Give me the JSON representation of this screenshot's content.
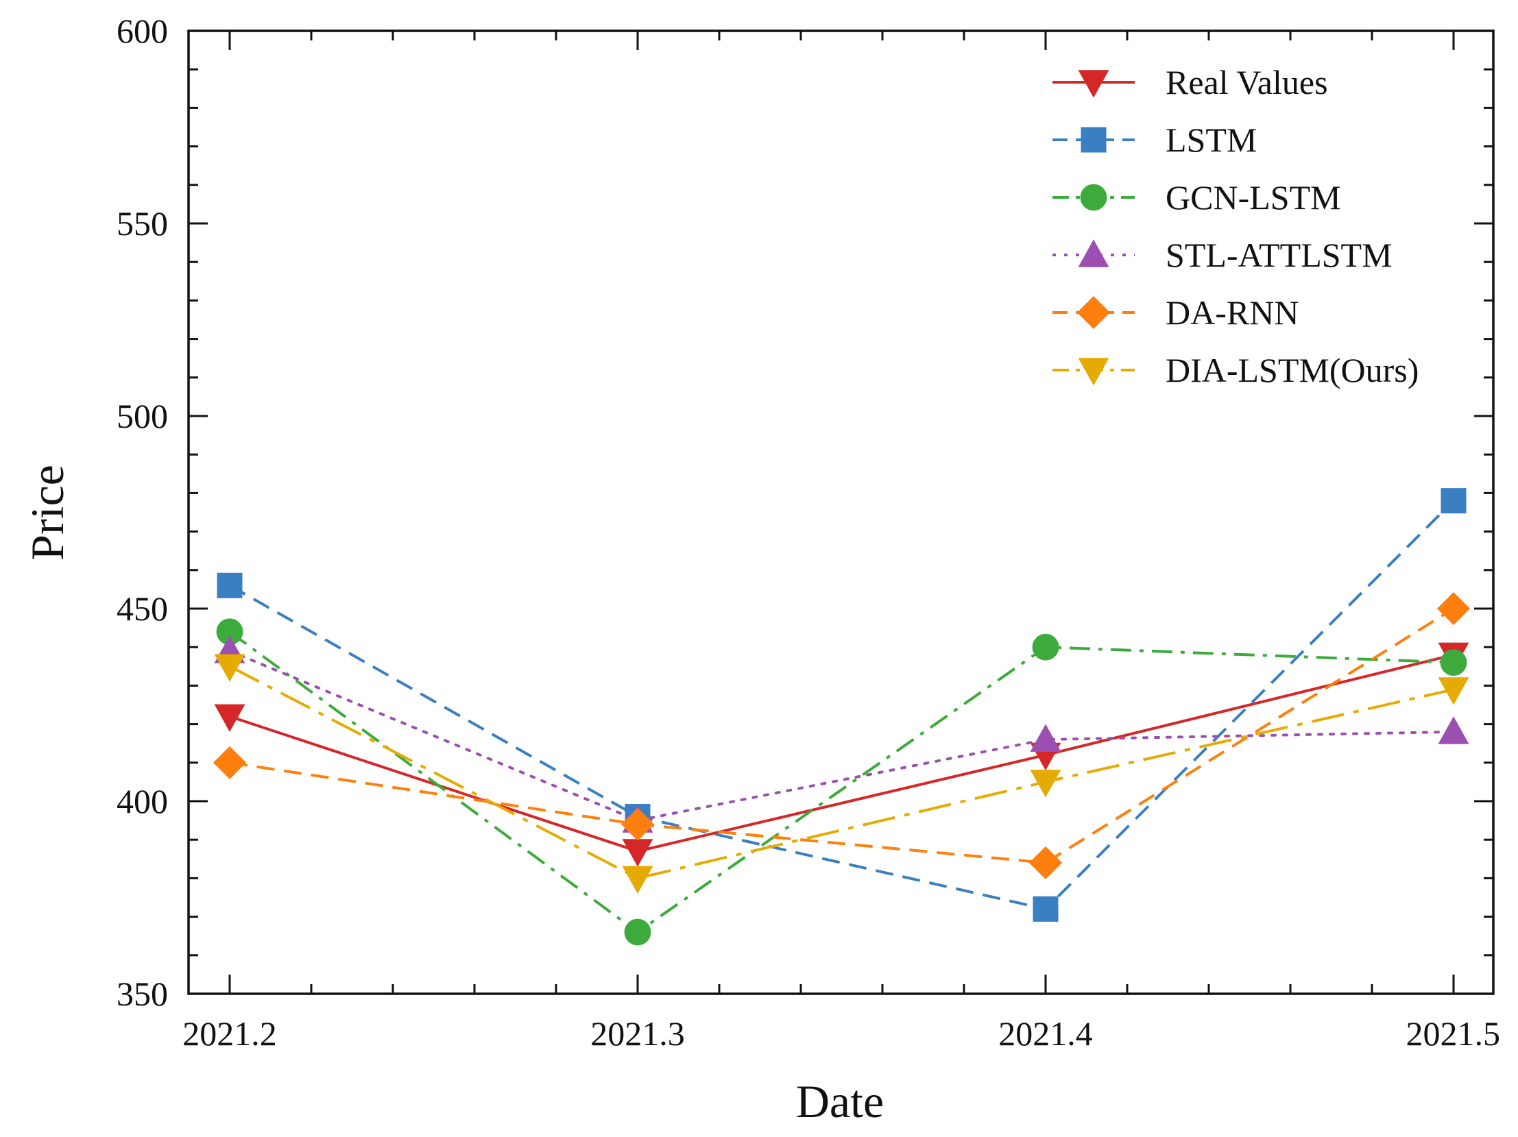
{
  "chart_data": {
    "type": "line",
    "title": "",
    "xlabel": "Date",
    "ylabel": "Price",
    "categories": [
      "2021.2",
      "2021.3",
      "2021.4",
      "2021.5"
    ],
    "ylim": [
      350,
      600
    ],
    "yticks": [
      "350",
      "400",
      "450",
      "500",
      "550",
      "600"
    ],
    "grid": false,
    "legend_position": "top-right",
    "series": [
      {
        "name": "Real Values",
        "values": [
          422,
          387,
          412,
          438
        ],
        "color": "#d62728",
        "marker": "triangle-down",
        "dash": "solid"
      },
      {
        "name": "LSTM",
        "values": [
          456,
          396,
          372,
          478
        ],
        "color": "#3a7fc1",
        "marker": "square",
        "dash": "dashed"
      },
      {
        "name": "GCN-LSTM",
        "values": [
          444,
          366,
          440,
          436
        ],
        "color": "#3cab3c",
        "marker": "circle",
        "dash": "dashdot"
      },
      {
        "name": "STL-ATTLSTM",
        "values": [
          439,
          395,
          416,
          418
        ],
        "color": "#9b4fb0",
        "marker": "triangle-up",
        "dash": "dotted"
      },
      {
        "name": "DA-RNN",
        "values": [
          410,
          394,
          384,
          450
        ],
        "color": "#ff7f0e",
        "marker": "diamond",
        "dash": "dashed"
      },
      {
        "name": "DIA-LSTM(Ours)",
        "values": [
          435,
          380,
          405,
          429
        ],
        "color": "#e6ab02",
        "marker": "triangle-down",
        "dash": "longdashdot"
      }
    ]
  }
}
